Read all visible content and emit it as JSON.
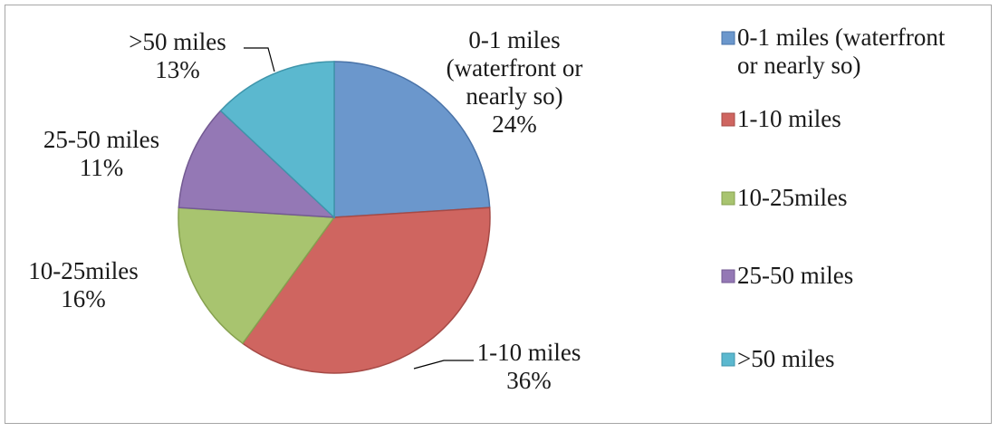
{
  "chart_data": {
    "type": "pie",
    "title": "",
    "legend_position": "right",
    "slices": [
      {
        "label": "0-1 miles (waterfront or nearly so)",
        "value": 24,
        "pct_label": "24%",
        "color": "#6b97cc",
        "stroke": "#4a73a8"
      },
      {
        "label": "1-10 miles",
        "value": 36,
        "pct_label": "36%",
        "color": "#cf6560",
        "stroke": "#a64a46"
      },
      {
        "label": "10-25miles",
        "value": 16,
        "pct_label": "16%",
        "color": "#a8c46f",
        "stroke": "#86a04f"
      },
      {
        "label": "25-50 miles",
        "value": 11,
        "pct_label": "11%",
        "color": "#9478b5",
        "stroke": "#735a92"
      },
      {
        "label": ">50 miles",
        "value": 13,
        "pct_label": "13%",
        "color": "#5bb8cf",
        "stroke": "#3f95ab"
      }
    ],
    "data_labels": [
      {
        "lines": [
          "0-1 miles",
          "(waterfront or",
          "nearly so)",
          "24%"
        ]
      },
      {
        "lines": [
          "1-10 miles",
          "36%"
        ]
      },
      {
        "lines": [
          "10-25miles",
          "16%"
        ]
      },
      {
        "lines": [
          "25-50 miles",
          "11%"
        ]
      },
      {
        "lines": [
          ">50 miles",
          "13%"
        ]
      }
    ],
    "legend": [
      {
        "lines": [
          "0-1 miles (waterfront",
          "or nearly so)"
        ]
      },
      {
        "lines": [
          "1-10 miles"
        ]
      },
      {
        "lines": [
          "10-25miles"
        ]
      },
      {
        "lines": [
          "25-50 miles"
        ]
      },
      {
        "lines": [
          ">50 miles"
        ]
      }
    ]
  }
}
